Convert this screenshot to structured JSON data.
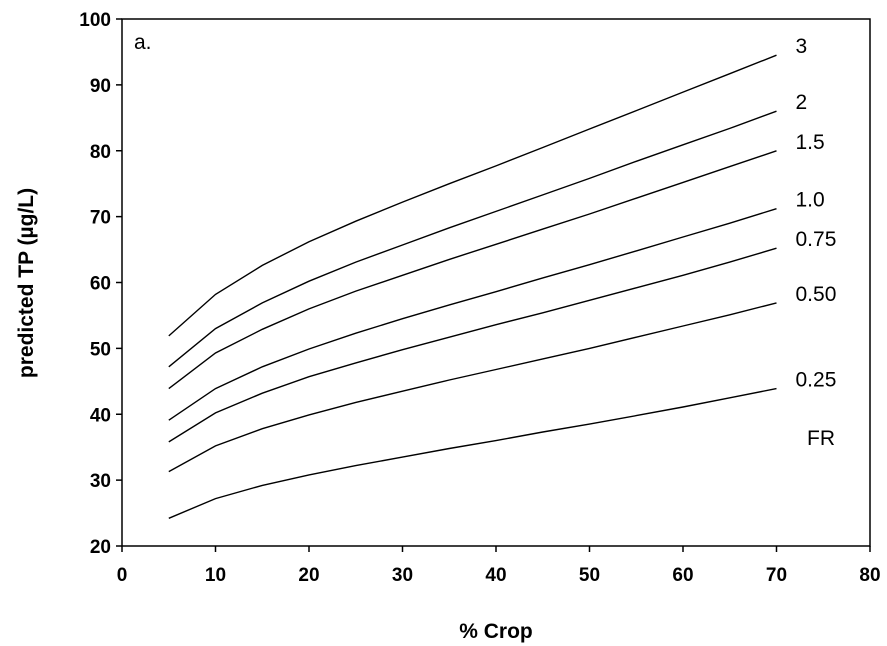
{
  "chart_data": {
    "type": "line",
    "title": "",
    "panel_label": "a.",
    "xlabel": "% Crop",
    "ylabel": "predicted TP (µg/L)",
    "xlim": [
      0,
      80
    ],
    "ylim": [
      20,
      100
    ],
    "x_ticks": [
      "0",
      "10",
      "20",
      "30",
      "40",
      "50",
      "60",
      "70",
      "80"
    ],
    "y_ticks": [
      "20",
      "30",
      "40",
      "50",
      "60",
      "70",
      "80",
      "90",
      "100"
    ],
    "grid": false,
    "legend": "none",
    "legend_title": "FR",
    "x": [
      5,
      10,
      15,
      20,
      25,
      30,
      35,
      40,
      45,
      50,
      55,
      60,
      65,
      70
    ],
    "series": [
      {
        "name": "3",
        "values": [
          51.9,
          58.2,
          62.6,
          66.2,
          69.3,
          72.2,
          75.0,
          77.7,
          80.5,
          83.3,
          86.1,
          88.9,
          91.7,
          94.5
        ]
      },
      {
        "name": "2",
        "values": [
          47.2,
          53.0,
          56.9,
          60.2,
          63.1,
          65.7,
          68.3,
          70.8,
          73.3,
          75.8,
          78.4,
          80.9,
          83.4,
          86.0
        ]
      },
      {
        "name": "1.5",
        "values": [
          43.9,
          49.3,
          52.9,
          56.0,
          58.7,
          61.1,
          63.5,
          65.8,
          68.1,
          70.4,
          72.8,
          75.2,
          77.6,
          80.0
        ]
      },
      {
        "name": "1.0",
        "values": [
          39.1,
          43.9,
          47.2,
          49.9,
          52.3,
          54.5,
          56.6,
          58.6,
          60.7,
          62.7,
          64.8,
          66.9,
          69.0,
          71.2
        ]
      },
      {
        "name": "0.75",
        "values": [
          35.8,
          40.2,
          43.2,
          45.7,
          47.8,
          49.8,
          51.7,
          53.6,
          55.4,
          57.3,
          59.2,
          61.1,
          63.1,
          65.2
        ]
      },
      {
        "name": "0.50",
        "values": [
          31.3,
          35.2,
          37.8,
          39.9,
          41.8,
          43.5,
          45.2,
          46.8,
          48.4,
          50.0,
          51.7,
          53.4,
          55.1,
          56.9
        ]
      },
      {
        "name": "0.25",
        "values": [
          24.2,
          27.2,
          29.2,
          30.8,
          32.2,
          33.5,
          34.8,
          36.0,
          37.3,
          38.5,
          39.8,
          41.1,
          42.5,
          43.9
        ]
      }
    ]
  }
}
